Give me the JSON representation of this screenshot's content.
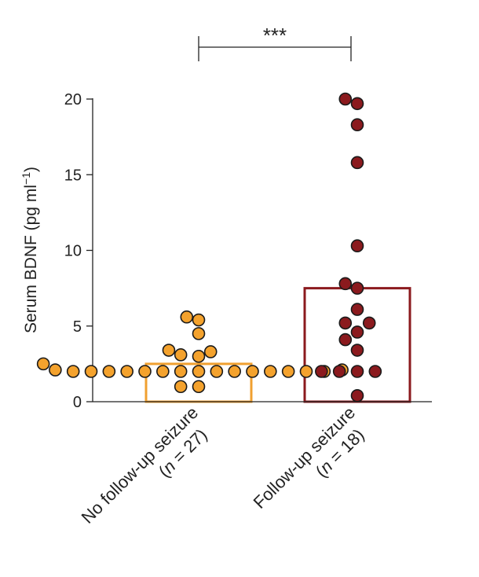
{
  "chart_data": {
    "type": "bar",
    "title": "",
    "ylabel": {
      "main": "Serum BDNF (pg ml",
      "sup": "−1",
      "close": ")"
    },
    "ylim": [
      0,
      20
    ],
    "yticks": [
      "0",
      "5",
      "10",
      "15",
      "20"
    ],
    "yticks_values": [
      0,
      5,
      10,
      15,
      20
    ],
    "categories": [
      {
        "line1": "No follow-up seizure",
        "open": "(",
        "n": "n",
        "eq": " = 27)"
      },
      {
        "line1": "Follow-up seizure",
        "open": "(",
        "n": "n",
        "eq": " = 18)"
      }
    ],
    "bar_values": [
      2.5,
      7.5
    ],
    "colors": {
      "group1_fill": "#F4A22D",
      "group1_bar": "#F0A030",
      "group2_fill": "#8B1A1E",
      "group2_bar": "#8B1A1E",
      "marker_edge": "#1a1a1a"
    },
    "points": [
      [
        5.6,
        5.4,
        4.5,
        3.4,
        3.1,
        3.3,
        3.0,
        2.5,
        2.1,
        2.1,
        2.0,
        2.0,
        2.0,
        2.0,
        2.0,
        2.0,
        2.0,
        2.0,
        2.0,
        2.0,
        2.0,
        2.0,
        2.0,
        2.0,
        2.0,
        1.0,
        1.0
      ],
      [
        20.0,
        19.7,
        18.3,
        15.8,
        10.3,
        7.8,
        7.5,
        6.1,
        5.2,
        5.2,
        4.6,
        4.1,
        3.4,
        2.0,
        2.0,
        2.0,
        2.0,
        0.4
      ]
    ],
    "significance": {
      "label": "***",
      "between": [
        0,
        1
      ]
    }
  }
}
